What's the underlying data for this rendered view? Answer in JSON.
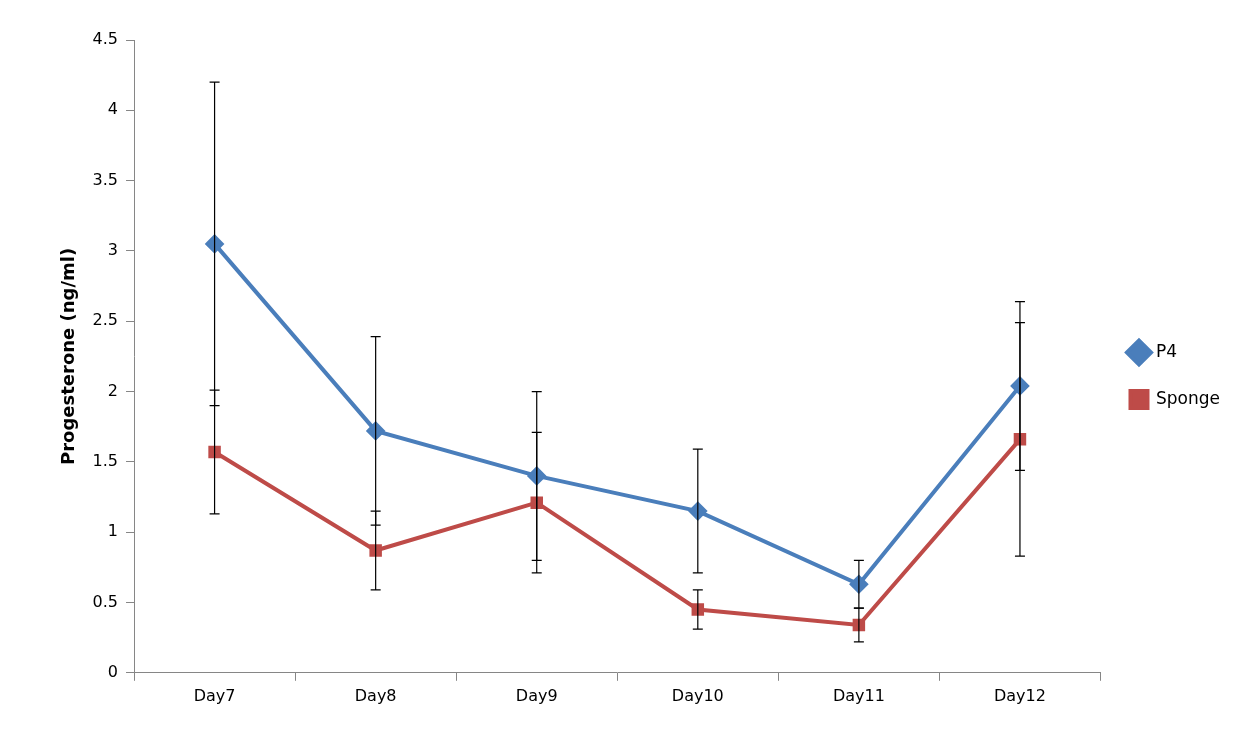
{
  "chart_data": {
    "type": "line",
    "y_label": "Progesterone (ng/ml)",
    "categories": [
      "Day7",
      "Day8",
      "Day9",
      "Day10",
      "Day11",
      "Day12"
    ],
    "series": [
      {
        "name": "P4",
        "color": "#4a7ebb",
        "marker": "diamond",
        "values": [
          3.05,
          1.72,
          1.4,
          1.15,
          0.63,
          2.04
        ],
        "errors": [
          1.15,
          0.67,
          0.6,
          0.44,
          0.17,
          0.6
        ]
      },
      {
        "name": "Sponge",
        "color": "#be4b48",
        "marker": "square",
        "values": [
          1.57,
          0.87,
          1.21,
          0.45,
          0.34,
          1.66
        ],
        "errors": [
          0.44,
          0.28,
          0.5,
          0.14,
          0.12,
          0.83
        ]
      }
    ],
    "ylim": [
      0,
      4.5
    ],
    "yticks": [
      0,
      0.5,
      1,
      1.5,
      2,
      2.5,
      3,
      3.5,
      4,
      4.5
    ],
    "grid": false,
    "legend": "right"
  }
}
